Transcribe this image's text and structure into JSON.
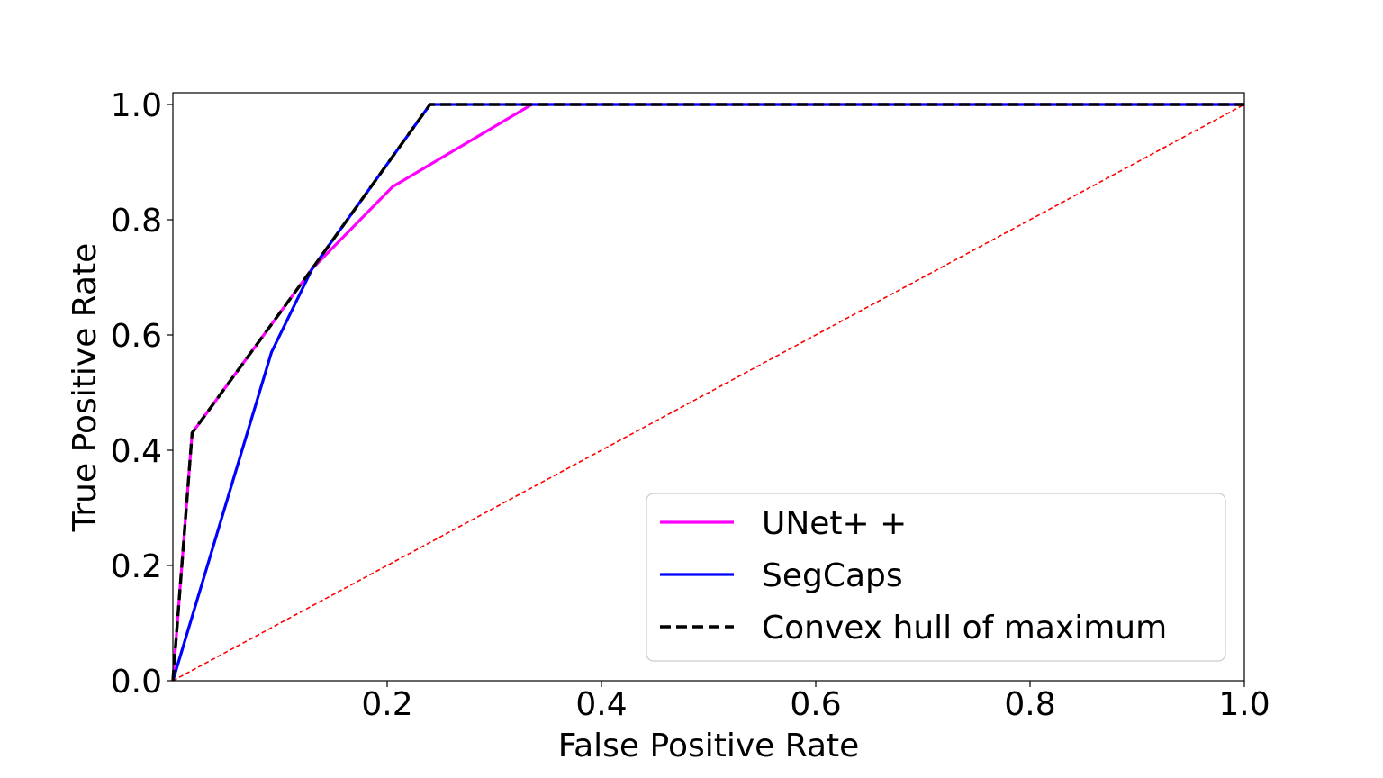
{
  "chart_data": {
    "type": "line",
    "title": "",
    "xlabel": "False Positive Rate",
    "ylabel": "True Positive Rate",
    "xlim": [
      0.0,
      1.0
    ],
    "ylim": [
      0.0,
      1.0
    ],
    "xticks": [
      "0.2",
      "0.4",
      "0.6",
      "0.8",
      "1.0"
    ],
    "xtick_values": [
      0.2,
      0.4,
      0.6,
      0.8,
      1.0
    ],
    "yticks": [
      "0.0",
      "0.2",
      "0.4",
      "0.6",
      "0.8",
      "1.0"
    ],
    "ytick_values": [
      0.0,
      0.2,
      0.4,
      0.6,
      0.8,
      1.0
    ],
    "grid": false,
    "legend_position": "bottom-right",
    "series": [
      {
        "name": "UNet++",
        "legend_label": "UNet+ +",
        "color": "#ff00ff",
        "style": "solid",
        "x": [
          0.0,
          0.018,
          0.13,
          0.205,
          0.335,
          1.0
        ],
        "y": [
          0.0,
          0.43,
          0.715,
          0.857,
          1.0,
          1.0
        ]
      },
      {
        "name": "SegCaps",
        "legend_label": "SegCaps",
        "color": "#0000ff",
        "style": "solid",
        "x": [
          0.0,
          0.092,
          0.13,
          0.24,
          1.0
        ],
        "y": [
          0.0,
          0.57,
          0.715,
          1.0,
          1.0
        ]
      },
      {
        "name": "Convex hull of maximum",
        "legend_label": "Convex hull of maximum",
        "color": "#000000",
        "style": "dashed",
        "x": [
          0.0,
          0.018,
          0.13,
          0.24,
          1.0
        ],
        "y": [
          0.0,
          0.43,
          0.715,
          1.0,
          1.0
        ]
      }
    ],
    "reference_line": {
      "color": "#ff0000",
      "style": "dashed",
      "x": [
        0.0,
        1.0
      ],
      "y": [
        0.0,
        1.0
      ]
    }
  }
}
